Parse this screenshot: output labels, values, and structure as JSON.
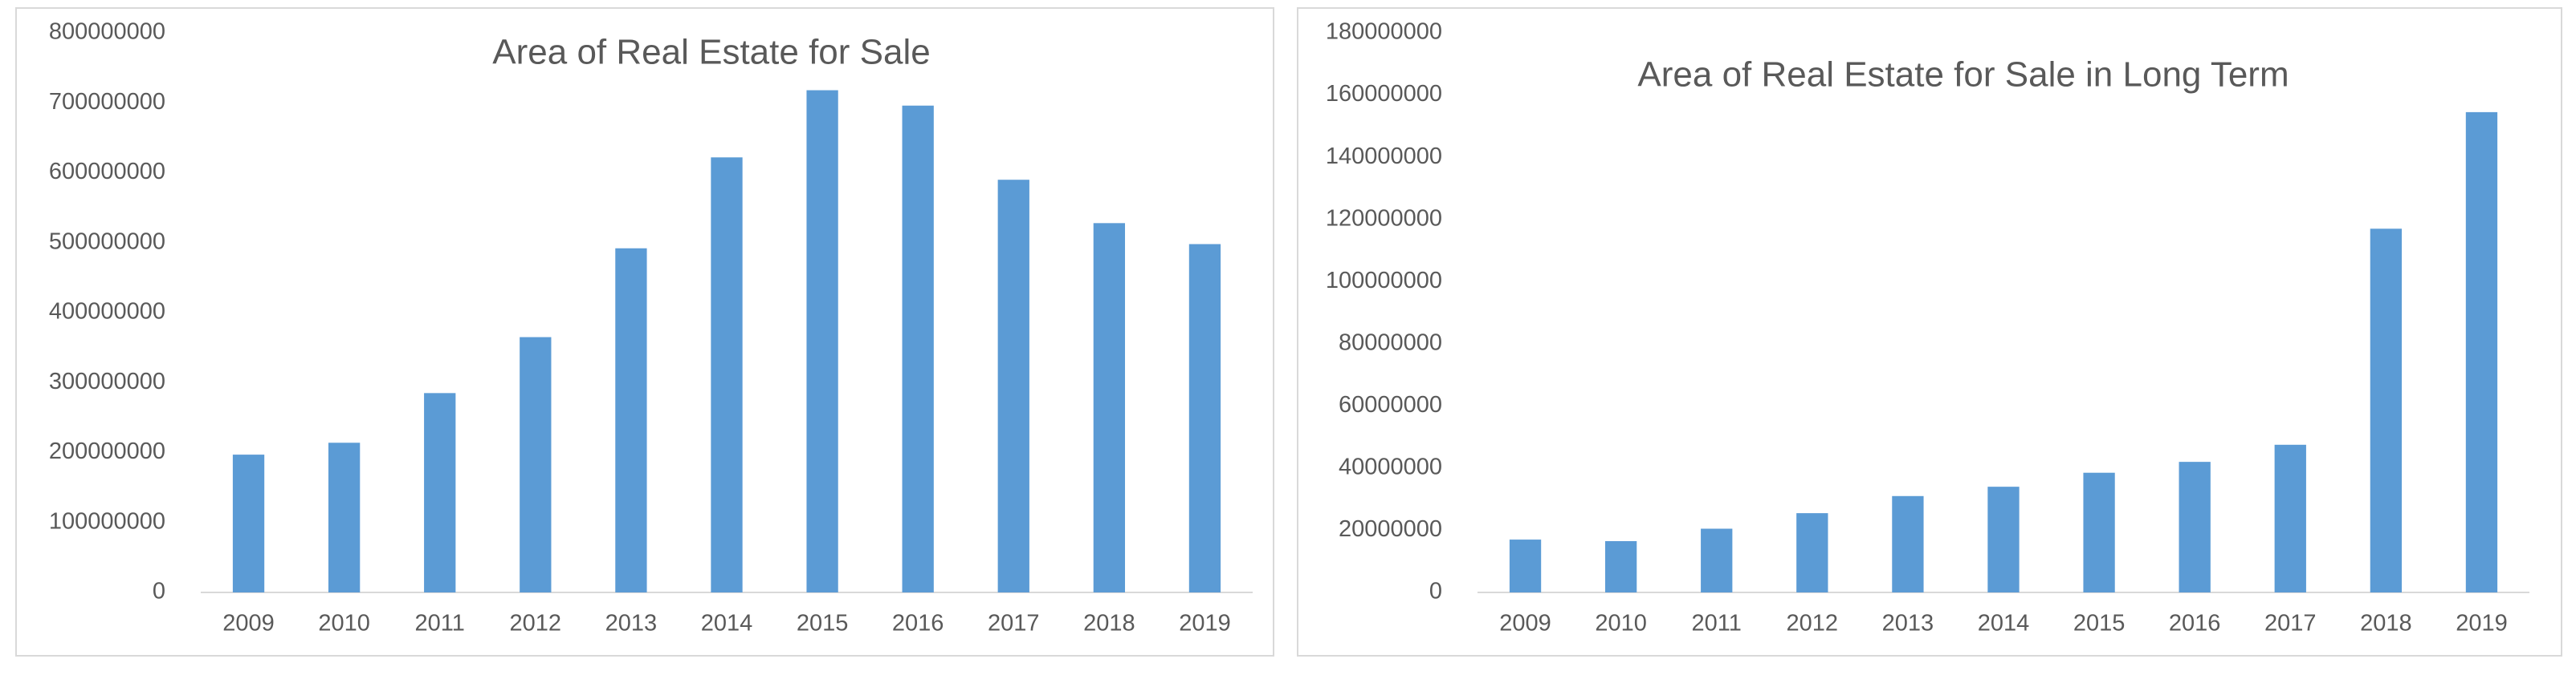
{
  "chart_data": [
    {
      "type": "bar",
      "title": "Area of Real Estate for Sale",
      "categories": [
        "2009",
        "2010",
        "2011",
        "2012",
        "2013",
        "2014",
        "2015",
        "2016",
        "2017",
        "2018",
        "2019"
      ],
      "values": [
        197000000,
        214000000,
        285000000,
        365000000,
        492000000,
        622000000,
        718000000,
        696000000,
        590000000,
        528000000,
        498000000
      ],
      "color": "#5b9bd5",
      "ylim": [
        0,
        800000000
      ],
      "yticks": [
        0,
        100000000,
        200000000,
        300000000,
        400000000,
        500000000,
        600000000,
        700000000,
        800000000
      ],
      "grid": false
    },
    {
      "type": "bar",
      "title": "Area of Real Estate for Sale in Long Term",
      "categories": [
        "2009",
        "2010",
        "2011",
        "2012",
        "2013",
        "2014",
        "2015",
        "2016",
        "2017",
        "2018",
        "2019"
      ],
      "values": [
        17000000,
        16500000,
        20500000,
        25500000,
        31000000,
        34000000,
        38500000,
        42000000,
        47500000,
        117000000,
        154500000
      ],
      "color": "#5b9bd5",
      "ylim": [
        0,
        180000000
      ],
      "yticks": [
        0,
        20000000,
        40000000,
        60000000,
        80000000,
        100000000,
        120000000,
        140000000,
        160000000,
        180000000
      ],
      "grid": false
    }
  ]
}
